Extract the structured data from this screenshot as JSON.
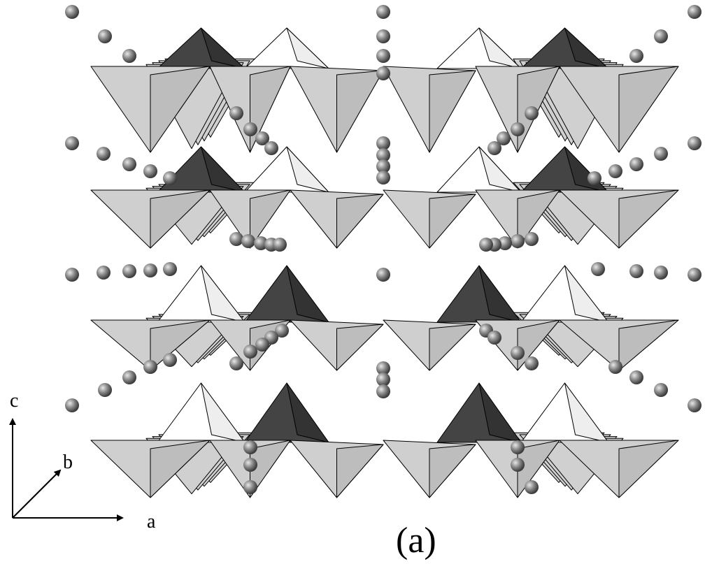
{
  "axes": {
    "c": "c",
    "b": "b",
    "a": "a"
  },
  "panel_label": "(a)"
}
